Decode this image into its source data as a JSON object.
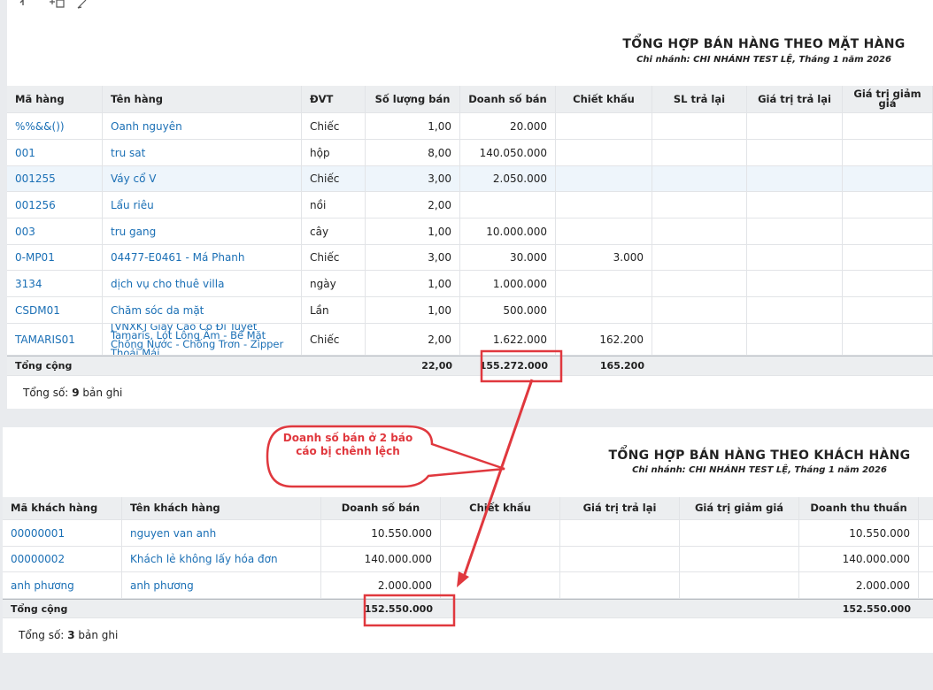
{
  "report_items": {
    "title": "TỔNG HỢP BÁN HÀNG THEO MẶT HÀNG",
    "subtitle": "Chi nhánh: CHI NHÁNH TEST LỆ, Tháng 1 năm 2026",
    "columns": [
      "Mã hàng",
      "Tên hàng",
      "ĐVT",
      "Số lượng bán",
      "Doanh số bán",
      "Chiết khấu",
      "SL trả lại",
      "Giá trị trả lại",
      "Giá trị giảm giá"
    ],
    "rows": [
      [
        "%%&&())",
        "Oanh nguyên",
        "Chiếc",
        "1,00",
        "20.000",
        null
      ],
      [
        "001",
        "tru sat",
        "hộp",
        "8,00",
        "140.050.000",
        null
      ],
      [
        "001255",
        "Váy cổ V",
        "Chiếc",
        "3,00",
        "2.050.000",
        null
      ],
      [
        "001256",
        "Lẩu riêu",
        "nồi",
        "2,00",
        null,
        null
      ],
      [
        "003",
        "tru gang",
        "cây",
        "1,00",
        "10.000.000",
        null
      ],
      [
        "0-MP01",
        "04477-E0461 - Má Phanh",
        "Chiếc",
        "3,00",
        "30.000",
        "3.000"
      ],
      [
        "3134",
        "dịch vụ cho thuê villa",
        "ngày",
        "1,00",
        "1.000.000",
        null
      ],
      [
        "CSDM01",
        "Chăm sóc da mặt",
        "Lần",
        "1,00",
        "500.000",
        null
      ],
      [
        "TAMARIS01",
        "[VNXK] Giày Cao Cổ Đi Tuyết Tamaris, Lót Lông Ấm - Bề Mặt Chống Nước - Chống Trơn - Zipper Thoải Mái",
        "Chiếc",
        "2,00",
        "1.622.000",
        "162.200"
      ]
    ],
    "total": [
      "Tổng cộng",
      null,
      null,
      "22,00",
      "155.272.000",
      "165.200"
    ],
    "footer": {
      "prefix": "Tổng số:",
      "count": 9,
      "suffix": "bản ghi"
    }
  },
  "report_customers": {
    "title": "TỔNG HỢP BÁN HÀNG THEO KHÁCH HÀNG",
    "subtitle": "Chi nhánh: CHI NHÁNH TEST LỆ, Tháng 1 năm 2026",
    "columns": [
      "Mã khách hàng",
      "Tên khách hàng",
      "Doanh số bán",
      "Chiết khấu",
      "Giá trị trả lại",
      "Giá trị giảm giá",
      "Doanh thu thuần"
    ],
    "rows": [
      [
        "00000001",
        "nguyen van anh",
        "10.550.000",
        null,
        null,
        null,
        "10.550.000"
      ],
      [
        "00000002",
        "Khách lẻ không lấy hóa đơn",
        "140.000.000",
        null,
        null,
        null,
        "140.000.000"
      ],
      [
        "anh phương",
        "anh phương",
        "2.000.000",
        null,
        null,
        null,
        "2.000.000"
      ]
    ],
    "total": [
      "Tổng cộng",
      null,
      "152.550.000",
      null,
      null,
      null,
      "152.550.000"
    ],
    "footer": {
      "prefix": "Tổng số:",
      "count": 3,
      "suffix": "bản ghi"
    }
  },
  "annotation": {
    "text": "Doanh số bán ở 2 báo cáo bị chênh lệch"
  }
}
